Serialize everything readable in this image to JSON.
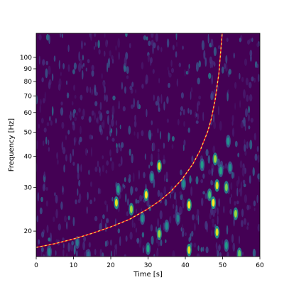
{
  "chart_data": {
    "type": "heatmap",
    "title": "",
    "xlabel": "Time [s]",
    "ylabel": "Frequency [Hz]",
    "xlim": [
      0,
      60
    ],
    "ylim": [
      15.8,
      125
    ],
    "yscale": "log",
    "x_ticks": [
      0,
      10,
      20,
      30,
      40,
      50,
      60
    ],
    "y_ticks": [
      20,
      30,
      40,
      50,
      60,
      70,
      80,
      90,
      100
    ],
    "colormap": "viridis",
    "grid": false,
    "bright_spots": [
      {
        "t": 3.5,
        "f": 16.5,
        "v": 0.45
      },
      {
        "t": 11,
        "f": 18,
        "v": 0.4
      },
      {
        "t": 14,
        "f": 16,
        "v": 0.35
      },
      {
        "t": 21.5,
        "f": 26,
        "v": 0.95
      },
      {
        "t": 22,
        "f": 29.5,
        "v": 0.55
      },
      {
        "t": 25.5,
        "f": 24.5,
        "v": 0.85
      },
      {
        "t": 28.5,
        "f": 22.5,
        "v": 0.5
      },
      {
        "t": 29.5,
        "f": 28,
        "v": 1.0
      },
      {
        "t": 30,
        "f": 17,
        "v": 0.6
      },
      {
        "t": 31,
        "f": 33,
        "v": 0.5
      },
      {
        "t": 33,
        "f": 36.5,
        "v": 0.95
      },
      {
        "t": 33,
        "f": 19.5,
        "v": 0.85
      },
      {
        "t": 35,
        "f": 21,
        "v": 0.5
      },
      {
        "t": 38,
        "f": 22.5,
        "v": 0.45
      },
      {
        "t": 39.5,
        "f": 31,
        "v": 0.5
      },
      {
        "t": 41,
        "f": 25.5,
        "v": 1.0
      },
      {
        "t": 41,
        "f": 16.8,
        "v": 0.95
      },
      {
        "t": 44.5,
        "f": 37,
        "v": 0.55
      },
      {
        "t": 46.5,
        "f": 28,
        "v": 0.7
      },
      {
        "t": 47.5,
        "f": 26,
        "v": 1.0
      },
      {
        "t": 48,
        "f": 39,
        "v": 0.85
      },
      {
        "t": 48.5,
        "f": 30.5,
        "v": 0.95
      },
      {
        "t": 48.5,
        "f": 19.8,
        "v": 0.95
      },
      {
        "t": 49.5,
        "f": 35,
        "v": 0.6
      },
      {
        "t": 51,
        "f": 30,
        "v": 0.8
      },
      {
        "t": 51.5,
        "f": 46,
        "v": 0.5
      },
      {
        "t": 51,
        "f": 17.5,
        "v": 0.55
      },
      {
        "t": 52,
        "f": 36,
        "v": 0.5
      },
      {
        "t": 53.5,
        "f": 23.5,
        "v": 0.85
      },
      {
        "t": 54.5,
        "f": 16.2,
        "v": 0.75
      }
    ],
    "overlay_track": {
      "style": "dashed",
      "colors": [
        "#e8121e",
        "#f5e65a"
      ],
      "t": [
        0,
        5,
        10,
        15,
        20,
        25,
        30,
        33,
        36,
        39,
        42,
        44,
        46,
        47,
        48,
        49,
        50
      ],
      "f": [
        17.2,
        17.8,
        18.6,
        19.6,
        20.8,
        22.3,
        24.6,
        26.4,
        28.8,
        32.2,
        37.2,
        42.3,
        50.3,
        56.9,
        67.6,
        86.4,
        131
      ]
    }
  }
}
